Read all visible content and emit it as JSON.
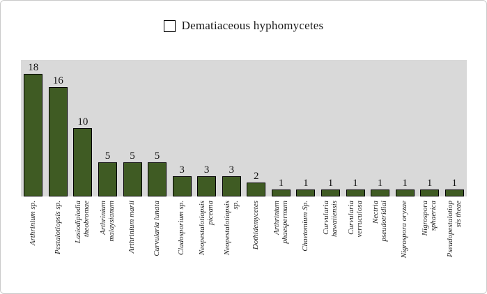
{
  "figure": {
    "background_color": "#ffffff",
    "border_color": "#c9c9c9"
  },
  "chart_data": {
    "type": "bar",
    "title": "",
    "legend_entries": [
      "Dematiaceous hyphomycetes"
    ],
    "legend_position": "top-center",
    "grid": false,
    "axes_visible": false,
    "plot_background": "#d9d9d9",
    "bar_color": "#3f5b23",
    "bar_border_color": "#000000",
    "value_labels": true,
    "ylim": [
      0,
      20
    ],
    "xlabel": "",
    "ylabel": "",
    "categories": [
      "Arthrinium sp.",
      "Pestalotiopsis sp.",
      "Lasiodiplodia theobromae",
      "Arthrinium malaysianum",
      "Arthrinium marii",
      "Curvularia lunata",
      "Cladosporium sp.",
      "Neopestalotiopsis piceana",
      "Neopestalotiopsis sp.",
      "Dothidemycetes",
      "Arthrinium phaespermum",
      "Chaetomium Sp.",
      "Curvularia hawaiiensis",
      "Curvularia verruculosa",
      "Nectria pseudotridiai",
      "Nigrospora oryzae",
      "Nigrospora sphaerica",
      "Pseudopestalotiopsis theae"
    ],
    "category_label_lines": [
      [
        "Arthrinium sp."
      ],
      [
        "Pestalotiopsis sp."
      ],
      [
        "Lasiodiplodia",
        "theobromae"
      ],
      [
        "Arthrinium",
        "malaysianum"
      ],
      [
        "Arthrinium marii"
      ],
      [
        "Curvularia lunata"
      ],
      [
        "Cladosporium sp."
      ],
      [
        "Neopestalotiopsis",
        "piceana"
      ],
      [
        "Neopestalotiopsis",
        "sp."
      ],
      [
        "Dothidemycetes"
      ],
      [
        "Arthrinium",
        "phaespermum"
      ],
      [
        "Chaetomium Sp."
      ],
      [
        "Curvularia",
        "hawaiiensis"
      ],
      [
        "Curvularia",
        "verruculosa"
      ],
      [
        "Nectria",
        "pseudotridiai"
      ],
      [
        "Nigrospora oryzae"
      ],
      [
        "Nigrospora",
        "sphaerica"
      ],
      [
        "Pseudopestalotiop",
        "sis theae"
      ]
    ],
    "values": [
      18,
      16,
      10,
      5,
      5,
      5,
      3,
      3,
      3,
      2,
      1,
      1,
      1,
      1,
      1,
      1,
      1,
      1
    ]
  }
}
